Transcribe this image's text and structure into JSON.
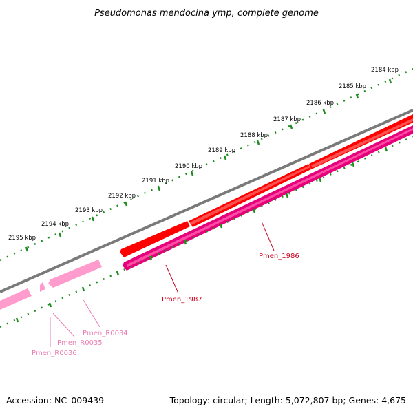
{
  "title": "Pseudomonas mendocina ymp, complete genome",
  "footer": {
    "accession": "Accession: NC_009439",
    "topology": "Topology: circular; Length: 5,072,807 bp; Genes: 4,675"
  },
  "scale": {
    "unit": "kbp",
    "ticks": [
      "2184 kbp",
      "2185 kbp",
      "2186 kbp",
      "2187 kbp",
      "2188 kbp",
      "2189 kbp",
      "2190 kbp",
      "2191 kbp",
      "2192 kbp",
      "2193 kbp",
      "2194 kbp",
      "2195 kbp"
    ]
  },
  "features": [
    {
      "label": "Pmen_1986",
      "strand": "forward",
      "color": "#ff0000"
    },
    {
      "label": "Pmen_1987",
      "strand": "reverse",
      "color": "#e6007a"
    },
    {
      "label": "Pmen_R0034",
      "strand": "reverse",
      "color": "#ff9ccd"
    },
    {
      "label": "Pmen_R0035",
      "strand": "reverse",
      "color": "#ff9ccd"
    },
    {
      "label": "Pmen_R0036",
      "strand": "reverse",
      "color": "#ff9ccd"
    }
  ],
  "colors": {
    "backbone": "#7a7a7a",
    "ruler": "#1e8c1e",
    "forward_gene": "#ff0000",
    "reverse_gene": "#e6007a",
    "rna": "#ff9ccd"
  }
}
